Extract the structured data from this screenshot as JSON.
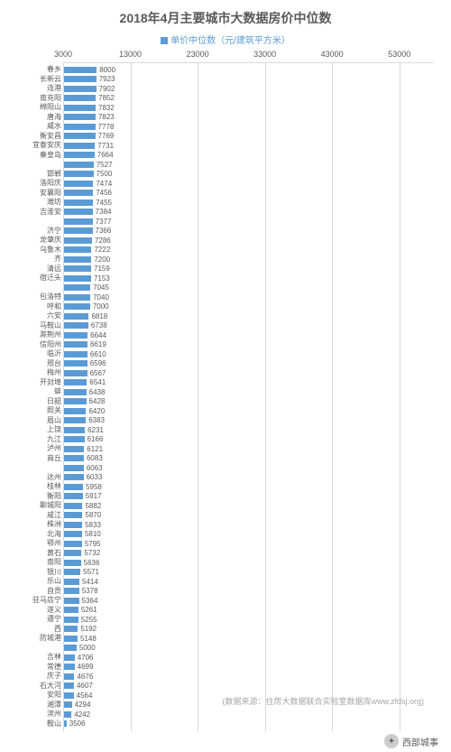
{
  "chart": {
    "type": "bar-horizontal",
    "title": "2018年4月主要城市大数据房价中位数",
    "legend_label": "单价中位数（元/建筑平方米）",
    "title_fontsize": 14,
    "title_color": "#595959",
    "legend_color": "#5b9bd5",
    "bar_color": "#5b9bd5",
    "grid_color": "#d9d9d9",
    "label_color": "#595959",
    "background_color": "#ffffff",
    "source_text": "(数据来源：住房大数据联合实验室数据库www.zfdsj.org)",
    "footer_label": "西部城事",
    "x_axis": {
      "min": 3000,
      "max": 58000,
      "ticks": [
        3000,
        13000,
        23000,
        33000,
        43000,
        53000
      ]
    },
    "bars": [
      {
        "label": "春乡",
        "value": 8000
      },
      {
        "label": "长新云",
        "value": 7923
      },
      {
        "label": "连港",
        "value": 7902
      },
      {
        "label": "南充阳",
        "value": 7852
      },
      {
        "label": "绵阳山",
        "value": 7832
      },
      {
        "label": "唐海",
        "value": 7823
      },
      {
        "label": "威水",
        "value": 7778
      },
      {
        "label": "衡安昌",
        "value": 7769
      },
      {
        "label": "宜泰安庆",
        "value": 7731
      },
      {
        "label": "秦皇岛",
        "value": 7664
      },
      {
        "label": "",
        "value": 7527
      },
      {
        "label": "邯郸",
        "value": 7500
      },
      {
        "label": "洛阳庆",
        "value": 7474
      },
      {
        "label": "安襄阳",
        "value": 7456
      },
      {
        "label": "潍坊",
        "value": 7455
      },
      {
        "label": "吉淮安",
        "value": 7384
      },
      {
        "label": "",
        "value": 7377
      },
      {
        "label": "济宁",
        "value": 7366
      },
      {
        "label": "龙肇庆",
        "value": 7286
      },
      {
        "label": "乌鲁木",
        "value": 7222
      },
      {
        "label": "齐",
        "value": 7200
      },
      {
        "label": "清远",
        "value": 7159
      },
      {
        "label": "宿迁头",
        "value": 7153
      },
      {
        "label": "",
        "value": 7045
      },
      {
        "label": "包洛特",
        "value": 7040
      },
      {
        "label": "呼和",
        "value": 7000
      },
      {
        "label": "六安",
        "value": 6818
      },
      {
        "label": "马鞍山",
        "value": 6738
      },
      {
        "label": "滁荆州",
        "value": 6644
      },
      {
        "label": "信阳州",
        "value": 6619
      },
      {
        "label": "临沂",
        "value": 6610
      },
      {
        "label": "邢台",
        "value": 6596
      },
      {
        "label": "梅州",
        "value": 6567
      },
      {
        "label": "开封埠",
        "value": 6541
      },
      {
        "label": "蚌",
        "value": 6438
      },
      {
        "label": "日韶",
        "value": 6428
      },
      {
        "label": "照关",
        "value": 6420
      },
      {
        "label": "眉山",
        "value": 6383
      },
      {
        "label": "上饶",
        "value": 6231
      },
      {
        "label": "九江",
        "value": 6166
      },
      {
        "label": "泸州",
        "value": 6121
      },
      {
        "label": "商丘",
        "value": 6083
      },
      {
        "label": "",
        "value": 6063
      },
      {
        "label": "达州",
        "value": 6033
      },
      {
        "label": "桂林",
        "value": 5958
      },
      {
        "label": "衡阳",
        "value": 5917
      },
      {
        "label": "聊城阳",
        "value": 5882
      },
      {
        "label": "咸江",
        "value": 5870
      },
      {
        "label": "株洲",
        "value": 5833
      },
      {
        "label": "北海",
        "value": 5810
      },
      {
        "label": "鄂州",
        "value": 5795
      },
      {
        "label": "黄石",
        "value": 5732
      },
      {
        "label": "南阳",
        "value": 5636
      },
      {
        "label": "银川",
        "value": 5571
      },
      {
        "label": "乐山",
        "value": 5414
      },
      {
        "label": "自贡",
        "value": 5378
      },
      {
        "label": "驻马店宁",
        "value": 5364
      },
      {
        "label": "遂义",
        "value": 5261
      },
      {
        "label": "遵宁",
        "value": 5255
      },
      {
        "label": "西",
        "value": 5192
      },
      {
        "label": "防城港",
        "value": 5148
      },
      {
        "label": "",
        "value": 5000
      },
      {
        "label": "吉林",
        "value": 4706
      },
      {
        "label": "常德",
        "value": 4699
      },
      {
        "label": "庆子",
        "value": 4676
      },
      {
        "label": "石大河",
        "value": 4607
      },
      {
        "label": "安阳",
        "value": 4564
      },
      {
        "label": "湘潭",
        "value": 4294
      },
      {
        "label": "滨州",
        "value": 4242
      },
      {
        "label": "鞍山",
        "value": 3506
      }
    ]
  }
}
